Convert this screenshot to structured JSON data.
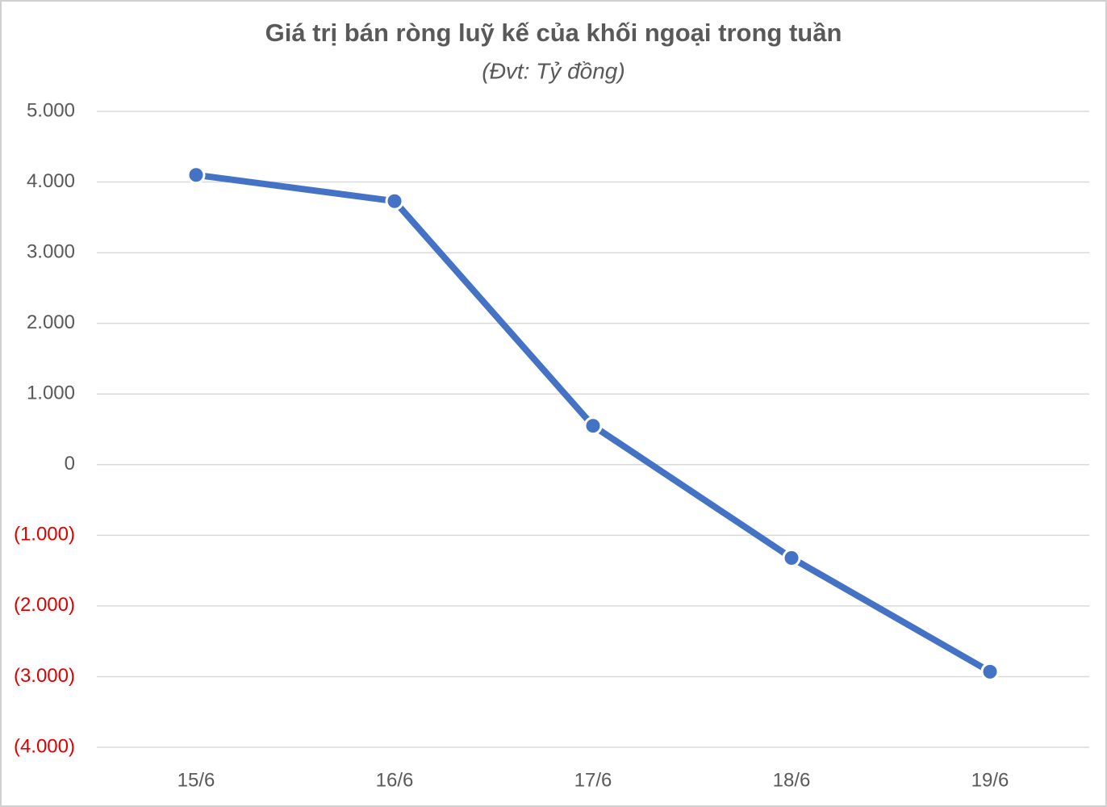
{
  "chart_data": {
    "type": "line",
    "title": "Giá trị bán ròng luỹ kế của khối ngoại trong tuần",
    "subtitle": "(Đvt: Tỷ đồng)",
    "categories": [
      "15/6",
      "16/6",
      "17/6",
      "18/6",
      "19/6"
    ],
    "series": [
      {
        "name": "Giá trị bán ròng luỹ kế",
        "color": "#4472c4",
        "values": [
          4100,
          3730,
          550,
          -1320,
          -2930
        ]
      }
    ],
    "ylim": [
      -4000,
      5000
    ],
    "yticks": [
      {
        "value": 5000,
        "label": "5.000"
      },
      {
        "value": 4000,
        "label": "4.000"
      },
      {
        "value": 3000,
        "label": "3.000"
      },
      {
        "value": 2000,
        "label": "2.000"
      },
      {
        "value": 1000,
        "label": "1.000"
      },
      0,
      {
        "value": -1000,
        "label": "(1.000)"
      },
      {
        "value": -2000,
        "label": "(2.000)"
      },
      {
        "value": -3000,
        "label": "(3.000)"
      },
      {
        "value": -4000,
        "label": "(4.000)"
      }
    ],
    "negative_tick_color": "#e00000",
    "grid": true
  }
}
